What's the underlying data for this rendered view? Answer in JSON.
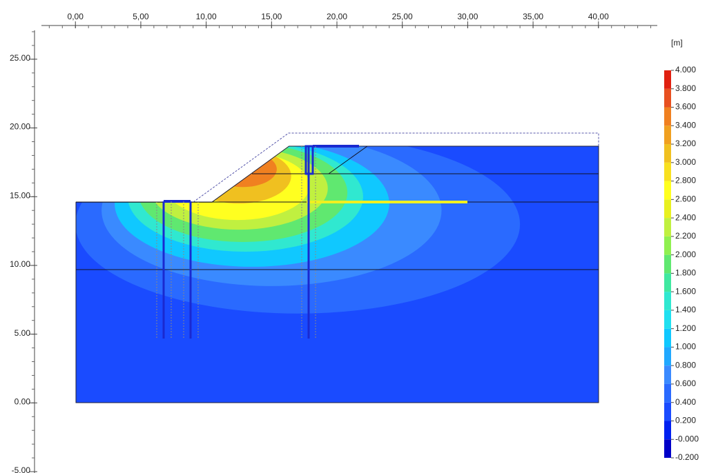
{
  "chart_data": {
    "type": "contour",
    "xlim": [
      -2.6,
      44.5
    ],
    "ylim": [
      -5.1,
      27.1
    ],
    "xticks": [
      {
        "value": 0,
        "label": "0,00"
      },
      {
        "value": 5,
        "label": "5,00"
      },
      {
        "value": 10,
        "label": "10,00"
      },
      {
        "value": 15,
        "label": "15,00"
      },
      {
        "value": 20,
        "label": "20,00"
      },
      {
        "value": 25,
        "label": "25,00"
      },
      {
        "value": 30,
        "label": "30,00"
      },
      {
        "value": 35,
        "label": "35,00"
      },
      {
        "value": 40,
        "label": "40,00"
      }
    ],
    "yticks": [
      {
        "value": -5,
        "label": "-5.00"
      },
      {
        "value": 0,
        "label": "0.00"
      },
      {
        "value": 5,
        "label": "5.00"
      },
      {
        "value": 10,
        "label": "10.00"
      },
      {
        "value": 15,
        "label": "15.00"
      },
      {
        "value": 20,
        "label": "20.00"
      },
      {
        "value": 25,
        "label": "25.00"
      }
    ],
    "colorbar": {
      "unit": "[m]",
      "lim": [
        -0.2,
        4.0
      ],
      "ticks": [
        {
          "value": -0.2,
          "label": "-0.200"
        },
        {
          "value": 0,
          "label": "-0.000"
        },
        {
          "value": 0.2,
          "label": "0.200"
        },
        {
          "value": 0.4,
          "label": "0.400"
        },
        {
          "value": 0.6,
          "label": "0.600"
        },
        {
          "value": 0.8,
          "label": "0.800"
        },
        {
          "value": 1,
          "label": "1.000"
        },
        {
          "value": 1.2,
          "label": "1.200"
        },
        {
          "value": 1.4,
          "label": "1.400"
        },
        {
          "value": 1.6,
          "label": "1.600"
        },
        {
          "value": 1.8,
          "label": "1.800"
        },
        {
          "value": 2,
          "label": "2.000"
        },
        {
          "value": 2.2,
          "label": "2.200"
        },
        {
          "value": 2.4,
          "label": "2.400"
        },
        {
          "value": 2.6,
          "label": "2.600"
        },
        {
          "value": 2.8,
          "label": "2.800"
        },
        {
          "value": 3,
          "label": "3.000"
        },
        {
          "value": 3.2,
          "label": "3.200"
        },
        {
          "value": 3.4,
          "label": "3.400"
        },
        {
          "value": 3.6,
          "label": "3.600"
        },
        {
          "value": 3.8,
          "label": "3.800"
        },
        {
          "value": 4,
          "label": "4.000"
        }
      ],
      "colors": [
        "#0000c8",
        "#0020f0",
        "#1a4bff",
        "#2a6aff",
        "#3a8aff",
        "#20a8ff",
        "#10c8ff",
        "#20e0f0",
        "#30e8d0",
        "#40e8a0",
        "#60e870",
        "#90f050",
        "#c0f040",
        "#e8f020",
        "#ffff20",
        "#f8e020",
        "#f0c020",
        "#f0a020",
        "#f08020",
        "#e85020",
        "#e02010"
      ]
    }
  }
}
